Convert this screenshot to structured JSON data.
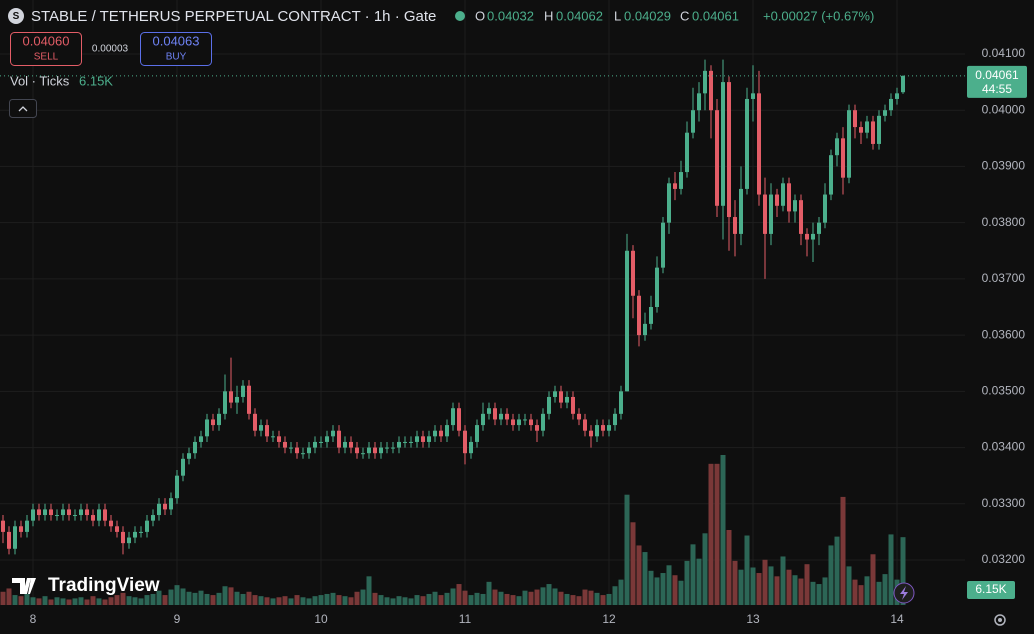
{
  "header": {
    "title": "STABLE / TETHERUS PERPETUAL CONTRACT · 1h · Gate",
    "ohlc_labels": [
      "O",
      "H",
      "L",
      "C"
    ],
    "change": "+0.00027 (+0.67%)",
    "countdown": "44:55",
    "brand": "TradingView"
  },
  "order": {
    "sell_price": "0.04060",
    "sell_label": "SELL",
    "spread": "0.00003",
    "buy_price": "0.04063",
    "buy_label": "BUY"
  },
  "chart_data": {
    "type": "candlestick",
    "up_color": "#4caf8c",
    "down_color": "#e35d67",
    "grid": true,
    "categories": [
      null,
      null,
      null,
      null,
      null,
      "8",
      null,
      null,
      null,
      null,
      null,
      null,
      null,
      null,
      null,
      null,
      null,
      null,
      null,
      null,
      null,
      null,
      null,
      null,
      null,
      null,
      null,
      null,
      null,
      "9",
      null,
      null,
      null,
      null,
      null,
      null,
      null,
      null,
      null,
      null,
      null,
      null,
      null,
      null,
      null,
      null,
      null,
      null,
      null,
      null,
      null,
      null,
      null,
      "10",
      null,
      null,
      null,
      null,
      null,
      null,
      null,
      null,
      null,
      null,
      null,
      null,
      null,
      null,
      null,
      null,
      null,
      null,
      null,
      null,
      null,
      null,
      null,
      "11",
      null,
      null,
      null,
      null,
      null,
      null,
      null,
      null,
      null,
      null,
      null,
      null,
      null,
      null,
      null,
      null,
      null,
      null,
      null,
      null,
      null,
      null,
      null,
      "12",
      null,
      null,
      null,
      null,
      null,
      null,
      null,
      null,
      null,
      null,
      null,
      null,
      null,
      null,
      null,
      null,
      null,
      null,
      null,
      null,
      null,
      null,
      null,
      "13",
      null,
      null,
      null,
      null,
      null,
      null,
      null,
      null,
      null,
      null,
      null,
      null,
      null,
      null,
      null,
      null,
      null,
      null,
      null,
      null,
      null,
      null,
      null,
      "14",
      null
    ],
    "open": [
      0.0327,
      0.0325,
      0.0322,
      0.0326,
      0.0325,
      0.0327,
      0.0329,
      0.0328,
      0.0329,
      0.0328,
      0.0328,
      0.0329,
      0.0328,
      0.0328,
      0.0329,
      0.0328,
      0.0327,
      0.0329,
      0.0327,
      0.0326,
      0.0325,
      0.0323,
      0.0324,
      0.0325,
      0.0325,
      0.0327,
      0.0328,
      0.033,
      0.0329,
      0.0331,
      0.0335,
      0.0338,
      0.0339,
      0.0341,
      0.0342,
      0.0345,
      0.0344,
      0.0346,
      0.035,
      0.0348,
      0.0349,
      0.0351,
      0.0346,
      0.0343,
      0.0344,
      0.0342,
      0.0342,
      0.0341,
      0.034,
      0.034,
      0.0339,
      0.0339,
      0.034,
      0.0341,
      0.0341,
      0.0342,
      0.0343,
      0.034,
      0.0341,
      0.034,
      0.0339,
      0.0339,
      0.034,
      0.0339,
      0.034,
      0.034,
      0.034,
      0.0341,
      0.0341,
      0.0341,
      0.0342,
      0.0341,
      0.0342,
      0.0343,
      0.0342,
      0.0344,
      0.0347,
      0.0343,
      0.0339,
      0.0341,
      0.0344,
      0.0346,
      0.0347,
      0.0345,
      0.0346,
      0.0345,
      0.0344,
      0.0345,
      0.0345,
      0.0344,
      0.0343,
      0.0346,
      0.0349,
      0.035,
      0.0348,
      0.0349,
      0.0346,
      0.0345,
      0.0343,
      0.0342,
      0.0344,
      0.0343,
      0.0344,
      0.0346,
      0.035,
      0.0375,
      0.0367,
      0.036,
      0.0362,
      0.0365,
      0.0372,
      0.038,
      0.0387,
      0.0386,
      0.0389,
      0.0396,
      0.04,
      0.0403,
      0.0407,
      0.04,
      0.0383,
      0.0405,
      0.0381,
      0.0378,
      0.0386,
      0.0402,
      0.0403,
      0.0385,
      0.0378,
      0.0385,
      0.0383,
      0.0387,
      0.0382,
      0.0384,
      0.0378,
      0.0377,
      0.0378,
      0.038,
      0.0385,
      0.0392,
      0.0395,
      0.0388,
      0.04,
      0.0397,
      0.0396,
      0.0398,
      0.0394,
      0.0399,
      0.04,
      0.0402,
      0.04032
    ],
    "high": [
      0.0328,
      0.0326,
      0.0327,
      0.0327,
      0.0328,
      0.033,
      0.033,
      0.033,
      0.033,
      0.0329,
      0.033,
      0.033,
      0.0329,
      0.033,
      0.033,
      0.0329,
      0.033,
      0.033,
      0.0328,
      0.0327,
      0.0326,
      0.0325,
      0.0326,
      0.0326,
      0.0328,
      0.0329,
      0.0331,
      0.0331,
      0.0332,
      0.0336,
      0.0339,
      0.034,
      0.0342,
      0.0343,
      0.0346,
      0.0346,
      0.0347,
      0.0353,
      0.0356,
      0.0351,
      0.0352,
      0.0352,
      0.0347,
      0.0345,
      0.0345,
      0.0343,
      0.0343,
      0.0342,
      0.0341,
      0.0341,
      0.034,
      0.0341,
      0.0342,
      0.0342,
      0.0343,
      0.0344,
      0.0344,
      0.0342,
      0.0342,
      0.0341,
      0.034,
      0.0341,
      0.0341,
      0.0341,
      0.0341,
      0.0341,
      0.0342,
      0.0342,
      0.0342,
      0.0343,
      0.0343,
      0.0343,
      0.0344,
      0.0344,
      0.0345,
      0.0348,
      0.0348,
      0.0344,
      0.0342,
      0.0345,
      0.0348,
      0.0348,
      0.0348,
      0.0347,
      0.0347,
      0.0346,
      0.0346,
      0.0346,
      0.0346,
      0.0345,
      0.0347,
      0.035,
      0.0351,
      0.0351,
      0.035,
      0.035,
      0.0347,
      0.0346,
      0.0344,
      0.0345,
      0.0345,
      0.0345,
      0.0347,
      0.0351,
      0.0378,
      0.0376,
      0.0368,
      0.0364,
      0.0367,
      0.0374,
      0.0381,
      0.0388,
      0.0389,
      0.0391,
      0.0398,
      0.0404,
      0.0405,
      0.0409,
      0.0408,
      0.0402,
      0.0409,
      0.0406,
      0.0384,
      0.039,
      0.0404,
      0.0408,
      0.0407,
      0.0388,
      0.0387,
      0.0386,
      0.0388,
      0.0388,
      0.0385,
      0.0385,
      0.0379,
      0.038,
      0.0381,
      0.0387,
      0.0393,
      0.0396,
      0.0397,
      0.0401,
      0.0401,
      0.0398,
      0.0399,
      0.0399,
      0.04,
      0.0401,
      0.0403,
      0.0404,
      0.04062
    ],
    "low": [
      0.0323,
      0.0321,
      0.0321,
      0.0324,
      0.0324,
      0.0326,
      0.0327,
      0.0327,
      0.0327,
      0.0327,
      0.0327,
      0.0327,
      0.0327,
      0.0327,
      0.0327,
      0.0326,
      0.0326,
      0.0326,
      0.0325,
      0.0324,
      0.0321,
      0.0322,
      0.0323,
      0.0324,
      0.0324,
      0.0326,
      0.0327,
      0.0328,
      0.0328,
      0.033,
      0.0334,
      0.0337,
      0.0338,
      0.034,
      0.0341,
      0.0343,
      0.0343,
      0.0345,
      0.0347,
      0.0346,
      0.0348,
      0.0345,
      0.0342,
      0.0342,
      0.0341,
      0.0341,
      0.034,
      0.0339,
      0.0339,
      0.0338,
      0.0338,
      0.0338,
      0.0339,
      0.034,
      0.034,
      0.0341,
      0.0339,
      0.0339,
      0.0339,
      0.0338,
      0.0338,
      0.0338,
      0.0338,
      0.0338,
      0.0339,
      0.0339,
      0.0339,
      0.034,
      0.034,
      0.034,
      0.034,
      0.034,
      0.0341,
      0.0341,
      0.0341,
      0.0343,
      0.0342,
      0.0337,
      0.0338,
      0.034,
      0.0343,
      0.0345,
      0.0344,
      0.0344,
      0.0344,
      0.0343,
      0.0343,
      0.0344,
      0.0343,
      0.0341,
      0.0342,
      0.0345,
      0.0348,
      0.0347,
      0.0347,
      0.0345,
      0.0344,
      0.0342,
      0.034,
      0.0341,
      0.0342,
      0.0342,
      0.0343,
      0.0345,
      0.035,
      0.0363,
      0.0358,
      0.0359,
      0.0361,
      0.0364,
      0.0371,
      0.0378,
      0.0384,
      0.0385,
      0.0388,
      0.0395,
      0.0398,
      0.04,
      0.0395,
      0.0381,
      0.0377,
      0.0375,
      0.0374,
      0.0376,
      0.0385,
      0.0398,
      0.0383,
      0.037,
      0.0376,
      0.0381,
      0.0382,
      0.038,
      0.038,
      0.0376,
      0.0374,
      0.0373,
      0.0376,
      0.0379,
      0.0384,
      0.039,
      0.0385,
      0.0387,
      0.0395,
      0.0394,
      0.0395,
      0.0393,
      0.0393,
      0.0398,
      0.0399,
      0.0401,
      0.04029
    ],
    "close": [
      0.0325,
      0.0322,
      0.0326,
      0.0325,
      0.0327,
      0.0329,
      0.0328,
      0.0329,
      0.0328,
      0.0328,
      0.0329,
      0.0328,
      0.0328,
      0.0329,
      0.0328,
      0.0327,
      0.0329,
      0.0327,
      0.0326,
      0.0325,
      0.0323,
      0.0324,
      0.0325,
      0.0325,
      0.0327,
      0.0328,
      0.033,
      0.0329,
      0.0331,
      0.0335,
      0.0338,
      0.0339,
      0.0341,
      0.0342,
      0.0345,
      0.0344,
      0.0346,
      0.035,
      0.0348,
      0.0349,
      0.0351,
      0.0346,
      0.0343,
      0.0344,
      0.0342,
      0.0342,
      0.0341,
      0.034,
      0.034,
      0.0339,
      0.0339,
      0.034,
      0.0341,
      0.0341,
      0.0342,
      0.0343,
      0.034,
      0.0341,
      0.034,
      0.0339,
      0.0339,
      0.034,
      0.0339,
      0.034,
      0.034,
      0.034,
      0.0341,
      0.0341,
      0.0341,
      0.0342,
      0.0341,
      0.0342,
      0.0343,
      0.0342,
      0.0344,
      0.0347,
      0.0343,
      0.0339,
      0.0341,
      0.0344,
      0.0346,
      0.0347,
      0.0345,
      0.0346,
      0.0345,
      0.0344,
      0.0345,
      0.0345,
      0.0344,
      0.0343,
      0.0346,
      0.0349,
      0.035,
      0.0348,
      0.0349,
      0.0346,
      0.0345,
      0.0343,
      0.0342,
      0.0344,
      0.0343,
      0.0344,
      0.0346,
      0.035,
      0.0375,
      0.0367,
      0.036,
      0.0362,
      0.0365,
      0.0372,
      0.038,
      0.0387,
      0.0386,
      0.0389,
      0.0396,
      0.04,
      0.0403,
      0.0407,
      0.04,
      0.0383,
      0.0405,
      0.0381,
      0.0378,
      0.0386,
      0.0402,
      0.0403,
      0.0385,
      0.0378,
      0.0385,
      0.0383,
      0.0387,
      0.0382,
      0.0384,
      0.0378,
      0.0377,
      0.0378,
      0.038,
      0.0385,
      0.0392,
      0.0395,
      0.0388,
      0.04,
      0.0397,
      0.0396,
      0.0398,
      0.0394,
      0.0399,
      0.04,
      0.0402,
      0.0403,
      0.04061
    ],
    "volume": {
      "name": "Vol · Ticks",
      "up_color": "#2c6656",
      "down_color": "#7a3838",
      "last_label": "6.15K",
      "values": [
        1200,
        1500,
        900,
        800,
        1000,
        700,
        600,
        800,
        500,
        700,
        600,
        500,
        600,
        700,
        500,
        800,
        600,
        500,
        700,
        900,
        1100,
        800,
        700,
        600,
        900,
        1000,
        1300,
        900,
        1400,
        1800,
        1500,
        1200,
        1100,
        1300,
        1000,
        900,
        1100,
        1700,
        1600,
        1200,
        1000,
        1200,
        900,
        800,
        700,
        600,
        700,
        800,
        600,
        900,
        700,
        600,
        800,
        900,
        1000,
        1100,
        900,
        800,
        700,
        1200,
        1400,
        2600,
        1100,
        900,
        700,
        600,
        800,
        700,
        600,
        900,
        800,
        1000,
        1200,
        900,
        1100,
        1500,
        1900,
        1300,
        900,
        1100,
        1000,
        2100,
        1400,
        1200,
        1000,
        900,
        800,
        1300,
        1200,
        1400,
        1600,
        1900,
        1500,
        1200,
        1000,
        900,
        800,
        1400,
        1300,
        1100,
        900,
        1000,
        1700,
        2300,
        10000,
        7500,
        5400,
        4800,
        3100,
        2500,
        2900,
        3600,
        2700,
        2200,
        4000,
        5500,
        4200,
        6500,
        12800,
        12800,
        13600,
        6800,
        4000,
        3200,
        6300,
        3400,
        2900,
        4100,
        3500,
        2600,
        4400,
        3200,
        2700,
        2400,
        3700,
        2100,
        1900,
        2500,
        5400,
        6200,
        9800,
        3500,
        2300,
        1800,
        2600,
        4600,
        2100,
        2800,
        6400,
        2300,
        6150
      ]
    },
    "ylim": [
      0.0312,
      0.04196
    ],
    "yticks": [
      {
        "value": 0.032,
        "label": "0.03200"
      },
      {
        "value": 0.033,
        "label": "0.03300"
      },
      {
        "value": 0.034,
        "label": "0.03400"
      },
      {
        "value": 0.035,
        "label": "0.03500"
      },
      {
        "value": 0.036,
        "label": "0.03600"
      },
      {
        "value": 0.037,
        "label": "0.03700"
      },
      {
        "value": 0.038,
        "label": "0.03800"
      },
      {
        "value": 0.039,
        "label": "0.03900"
      },
      {
        "value": 0.04,
        "label": "0.04000"
      },
      {
        "value": 0.041,
        "label": "0.04100"
      }
    ]
  }
}
